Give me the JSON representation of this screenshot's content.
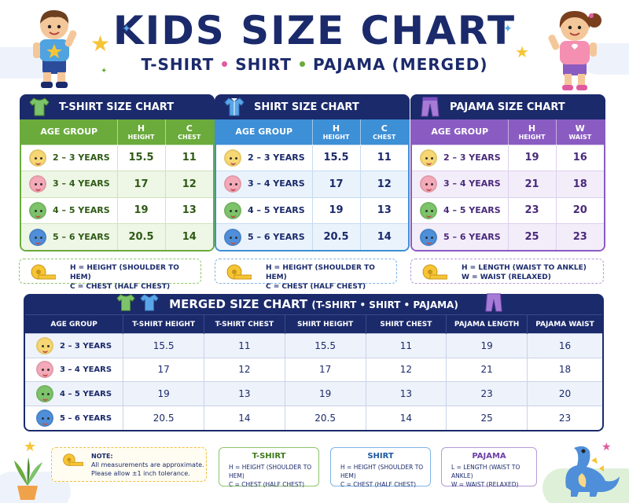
{
  "title": "KIDS SIZE CHART",
  "subtitle": {
    "part1": "T-SHIRT",
    "part2": "SHIRT",
    "part3": "PAJAMA (MERGED)"
  },
  "colors": {
    "navy": "#1b2a6b",
    "tshirt": "#6aab3c",
    "shirt": "#3d8fd6",
    "pajama": "#8a5cc2",
    "accent_star": "#f6c535"
  },
  "panels": [
    {
      "title": "T-SHIRT SIZE CHART",
      "icon": "tshirt-icon",
      "headers": {
        "age": "AGE GROUP",
        "m1": "H",
        "m1_sub": "HEIGHT",
        "m2": "C",
        "m2_sub": "CHEST"
      },
      "rows": [
        {
          "age": "2 – 3 YEARS",
          "m1": "15.5",
          "m2": "11"
        },
        {
          "age": "3 – 4 YEARS",
          "m1": "17",
          "m2": "12"
        },
        {
          "age": "4 – 5 YEARS",
          "m1": "19",
          "m2": "13"
        },
        {
          "age": "5 – 6 YEARS",
          "m1": "20.5",
          "m2": "14"
        }
      ],
      "legend": [
        "H = HEIGHT (SHOULDER TO HEM)",
        "C = CHEST (HALF CHEST)"
      ]
    },
    {
      "title": "SHIRT SIZE CHART",
      "icon": "shirt-icon",
      "headers": {
        "age": "AGE GROUP",
        "m1": "H",
        "m1_sub": "HEIGHT",
        "m2": "C",
        "m2_sub": "CHEST"
      },
      "rows": [
        {
          "age": "2 – 3 YEARS",
          "m1": "15.5",
          "m2": "11"
        },
        {
          "age": "3 – 4 YEARS",
          "m1": "17",
          "m2": "12"
        },
        {
          "age": "4 – 5 YEARS",
          "m1": "19",
          "m2": "13"
        },
        {
          "age": "5 – 6 YEARS",
          "m1": "20.5",
          "m2": "14"
        }
      ],
      "legend": [
        "H = HEIGHT (SHOULDER TO HEM)",
        "C = CHEST (HALF CHEST)"
      ]
    },
    {
      "title": "PAJAMA SIZE CHART",
      "icon": "pajama-icon",
      "headers": {
        "age": "AGE GROUP",
        "m1": "H",
        "m1_sub": "HEIGHT",
        "m2": "W",
        "m2_sub": "WAIST"
      },
      "rows": [
        {
          "age": "2 – 3 YEARS",
          "m1": "19",
          "m2": "16"
        },
        {
          "age": "3 – 4 YEARS",
          "m1": "21",
          "m2": "18"
        },
        {
          "age": "4 – 5 YEARS",
          "m1": "23",
          "m2": "20"
        },
        {
          "age": "5 – 6 YEARS",
          "m1": "25",
          "m2": "23"
        }
      ],
      "legend": [
        "H = LENGTH (WAIST TO ANKLE)",
        "W = WAIST (RELAXED)"
      ]
    }
  ],
  "merged": {
    "title": "MERGED SIZE CHART",
    "title_sub": "(T-SHIRT • SHIRT • PAJAMA)",
    "headers": [
      "AGE GROUP",
      "T-SHIRT HEIGHT",
      "T-SHIRT CHEST",
      "SHIRT HEIGHT",
      "SHIRT CHEST",
      "PAJAMA LENGTH",
      "PAJAMA WAIST"
    ],
    "rows": [
      [
        "2 – 3 YEARS",
        "15.5",
        "11",
        "15.5",
        "11",
        "19",
        "16"
      ],
      [
        "3 – 4 YEARS",
        "17",
        "12",
        "17",
        "12",
        "21",
        "18"
      ],
      [
        "4 – 5 YEARS",
        "19",
        "13",
        "19",
        "13",
        "23",
        "20"
      ],
      [
        "5 – 6 YEARS",
        "20.5",
        "14",
        "20.5",
        "14",
        "25",
        "23"
      ]
    ]
  },
  "note": {
    "label": "NOTE:",
    "line1": "All measurements are approximate.",
    "line2": "Please allow ±1 inch tolerance."
  },
  "mini_legends": [
    {
      "title": "T-SHIRT",
      "l1": "H = HEIGHT (SHOULDER TO HEM)",
      "l2": "C = CHEST (HALF CHEST)"
    },
    {
      "title": "SHIRT",
      "l1": "H = HEIGHT (SHOULDER TO HEM)",
      "l2": "C = CHEST (HALF CHEST)"
    },
    {
      "title": "PAJAMA",
      "l1": "L = LENGTH (WAIST TO ANKLE)",
      "l2": "W = WAIST (RELAXED)"
    }
  ],
  "face_colors": [
    "#f7d774",
    "#f4a9b8",
    "#7cc36a",
    "#4f8fd9"
  ]
}
